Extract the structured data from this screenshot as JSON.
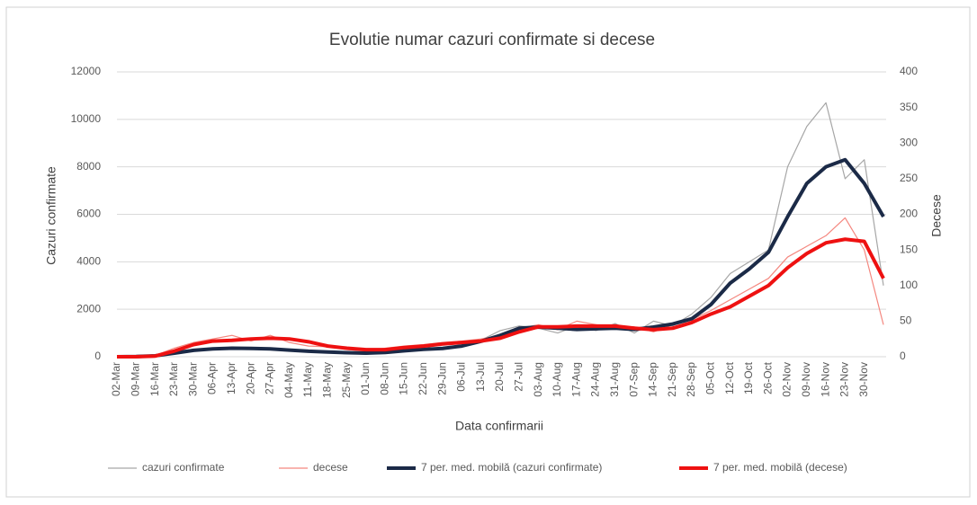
{
  "chart_data": {
    "type": "line",
    "title": "Evolutie numar cazuri confirmate si decese",
    "x_label": "Data confirmarii",
    "y_label": "Cazuri confirmate",
    "y2_label": "Decese",
    "categories": [
      "02-Mar",
      "09-Mar",
      "16-Mar",
      "23-Mar",
      "30-Mar",
      "06-Apr",
      "13-Apr",
      "20-Apr",
      "27-Apr",
      "04-May",
      "11-May",
      "18-May",
      "25-May",
      "01-Jun",
      "08-Jun",
      "15-Jun",
      "22-Jun",
      "29-Jun",
      "06-Jul",
      "13-Jul",
      "20-Jul",
      "27-Jul",
      "03-Aug",
      "10-Aug",
      "17-Aug",
      "24-Aug",
      "31-Aug",
      "07-Sep",
      "14-Sep",
      "21-Sep",
      "28-Sep",
      "05-Oct",
      "12-Oct",
      "19-Oct",
      "26-Oct",
      "02-Nov",
      "09-Nov",
      "16-Nov",
      "23-Nov",
      "30-Nov",
      null
    ],
    "ylim": [
      0,
      12000
    ],
    "yticks": [
      0,
      2000,
      4000,
      6000,
      8000,
      10000,
      12000
    ],
    "y2lim": [
      0,
      400
    ],
    "y2ticks": [
      0,
      50,
      100,
      150,
      200,
      250,
      300,
      350,
      400
    ],
    "grid": true,
    "legend": "bottom",
    "series": [
      {
        "name": "cazuri confirmate",
        "color": "#a6a6a6",
        "width": 1.2,
        "values": [
          0,
          20,
          60,
          250,
          300,
          350,
          400,
          300,
          350,
          250,
          200,
          200,
          150,
          100,
          200,
          250,
          350,
          300,
          500,
          700,
          1100,
          1300,
          1200,
          1000,
          1300,
          1100,
          1400,
          1000,
          1500,
          1300,
          1800,
          2500,
          3500,
          4000,
          4500,
          8000,
          9700,
          10700,
          7500,
          8300,
          3000
        ]
      },
      {
        "name": "decese",
        "color": "#f4877f",
        "width": 1.2,
        "axis": "y2",
        "values": [
          0,
          0,
          2,
          12,
          20,
          25,
          30,
          22,
          30,
          20,
          15,
          14,
          10,
          8,
          12,
          15,
          17,
          20,
          22,
          25,
          30,
          40,
          45,
          38,
          50,
          45,
          40,
          42,
          35,
          45,
          52,
          65,
          80,
          95,
          110,
          140,
          155,
          170,
          195,
          150,
          45
        ]
      },
      {
        "name": "7 per. med. mobilă (cazuri confirmate)",
        "color": "#1b2a47",
        "width": 4,
        "values": [
          0,
          10,
          40,
          150,
          270,
          330,
          360,
          350,
          330,
          280,
          230,
          200,
          170,
          150,
          180,
          250,
          310,
          350,
          450,
          650,
          900,
          1200,
          1250,
          1200,
          1150,
          1180,
          1200,
          1150,
          1250,
          1380,
          1600,
          2200,
          3100,
          3700,
          4400,
          5900,
          7300,
          8000,
          8300,
          7300,
          5900
        ]
      },
      {
        "name": "7 per. med. mobilă (decese)",
        "color": "#ee1111",
        "width": 4,
        "axis": "y2",
        "values": [
          0,
          0,
          1,
          8,
          17,
          22,
          23,
          25,
          26,
          25,
          21,
          15,
          12,
          10,
          10,
          13,
          15,
          18,
          20,
          22,
          26,
          35,
          42,
          42,
          43,
          43,
          43,
          40,
          38,
          40,
          48,
          60,
          70,
          85,
          100,
          125,
          145,
          160,
          165,
          162,
          110
        ]
      }
    ]
  }
}
